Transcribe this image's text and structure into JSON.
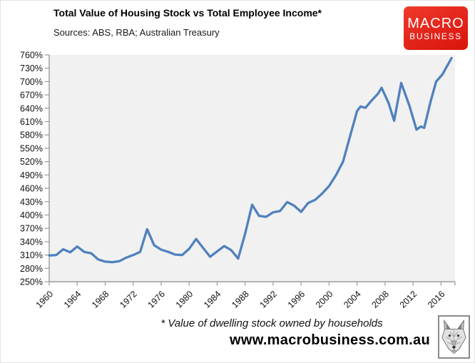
{
  "header": {
    "title": "Total Value of Housing Stock vs Total Employee Income*",
    "sources": "Sources: ABS, RBA; Australian Treasury"
  },
  "logo": {
    "line1": "MACRO",
    "line2": "BUSINESS",
    "bg_color": "#e2241a",
    "text_color": "#ffffff"
  },
  "chart_data": {
    "type": "line",
    "title": "Total Value of Housing Stock vs Total Employee Income*",
    "sources_note": "Sources: ABS, RBA; Australian Treasury",
    "footnote": "* Value of dwelling stock owned by households",
    "xlim": [
      1960,
      2018
    ],
    "ylim": [
      250,
      760
    ],
    "x_tick_values": [
      1960,
      1964,
      1968,
      1972,
      1976,
      1980,
      1984,
      1988,
      1992,
      1996,
      2000,
      2004,
      2008,
      2012,
      2016
    ],
    "y_tick_values": [
      250,
      280,
      310,
      340,
      370,
      400,
      430,
      460,
      490,
      520,
      550,
      580,
      610,
      640,
      670,
      700,
      730,
      760
    ],
    "y_tick_suffix": "%",
    "x_tick_rotation_deg": -45,
    "grid": false,
    "legend": "none",
    "line_color": "#4f81bd",
    "plot_bg_color": "#f1f1f1",
    "axis_color": "#9a9a9a",
    "series": [
      {
        "points": [
          [
            1960,
            309
          ],
          [
            1961,
            310
          ],
          [
            1962,
            323
          ],
          [
            1963,
            316
          ],
          [
            1964,
            329
          ],
          [
            1965,
            317
          ],
          [
            1966,
            314
          ],
          [
            1967,
            300
          ],
          [
            1968,
            295
          ],
          [
            1969,
            294
          ],
          [
            1970,
            296
          ],
          [
            1971,
            304
          ],
          [
            1972,
            310
          ],
          [
            1973,
            317
          ],
          [
            1974,
            368
          ],
          [
            1975,
            332
          ],
          [
            1976,
            322
          ],
          [
            1977,
            317
          ],
          [
            1978,
            311
          ],
          [
            1979,
            310
          ],
          [
            1980,
            324
          ],
          [
            1981,
            346
          ],
          [
            1982,
            326
          ],
          [
            1983,
            306
          ],
          [
            1984,
            318
          ],
          [
            1985,
            330
          ],
          [
            1986,
            321
          ],
          [
            1987,
            302
          ],
          [
            1988,
            358
          ],
          [
            1989,
            423
          ],
          [
            1990,
            398
          ],
          [
            1991,
            396
          ],
          [
            1992,
            406
          ],
          [
            1993,
            409
          ],
          [
            1994,
            429
          ],
          [
            1995,
            421
          ],
          [
            1996,
            407
          ],
          [
            1997,
            427
          ],
          [
            1998,
            434
          ],
          [
            1999,
            448
          ],
          [
            2000,
            465
          ],
          [
            2001,
            490
          ],
          [
            2002,
            520
          ],
          [
            2003,
            577
          ],
          [
            2004,
            634
          ],
          [
            2004.5,
            644
          ],
          [
            2005.2,
            641
          ],
          [
            2006,
            656
          ],
          [
            2007,
            673
          ],
          [
            2007.5,
            686
          ],
          [
            2008.5,
            652
          ],
          [
            2009.3,
            612
          ],
          [
            2010.3,
            697
          ],
          [
            2011.5,
            645
          ],
          [
            2012.5,
            592
          ],
          [
            2013.1,
            599
          ],
          [
            2013.6,
            596
          ],
          [
            2014.5,
            655
          ],
          [
            2015.3,
            700
          ],
          [
            2016.2,
            716
          ],
          [
            2017.5,
            753
          ]
        ]
      }
    ]
  },
  "footer": {
    "footnote": "* Value of dwelling stock owned by households",
    "website": "www.macrobusiness.com.au",
    "wolf_logo": "wolf-head-sketch"
  }
}
